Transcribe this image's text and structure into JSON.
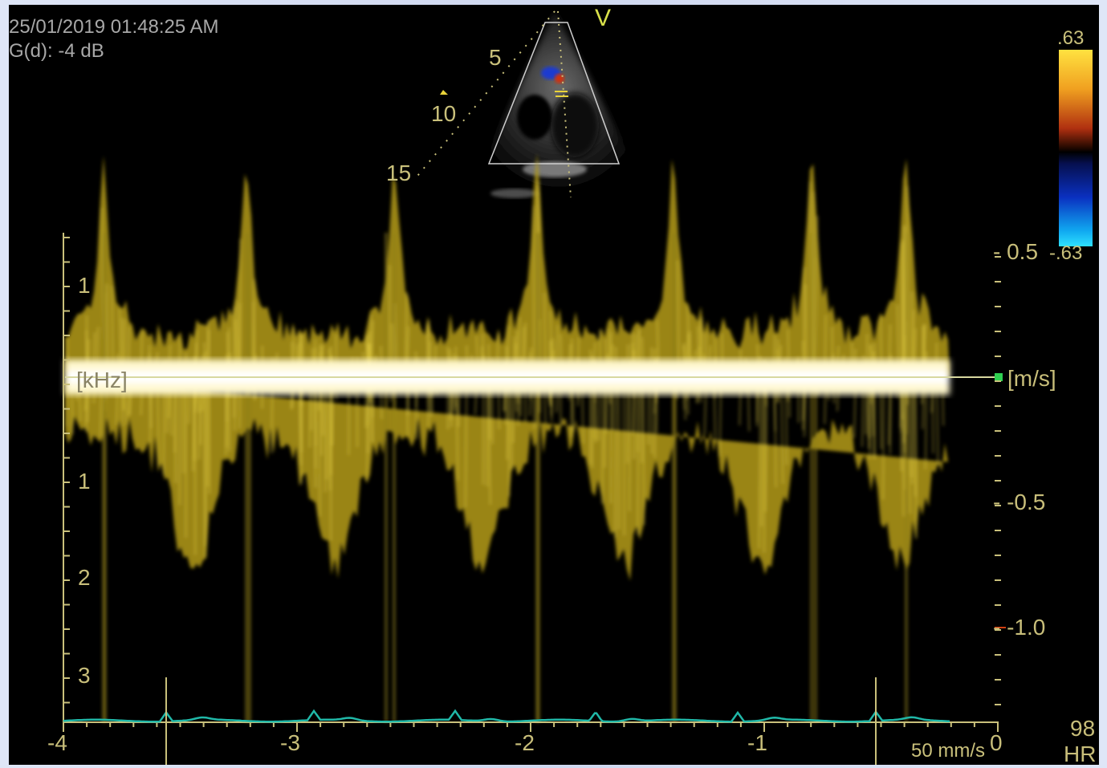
{
  "header": {
    "datetime": "25/01/2019 01:48:25 AM",
    "gain": "G(d): -4 dB"
  },
  "sector": {
    "mode_marker": "V",
    "depth_labels": [
      "5",
      "10",
      "15"
    ]
  },
  "color_scale": {
    "top_label": ".63",
    "bottom_label": "-.63"
  },
  "spectrum": {
    "left_axis": {
      "unit": "[kHz]",
      "ticks": [
        "1",
        "1",
        "2",
        "3"
      ]
    },
    "right_axis": {
      "unit": "[m/s]",
      "ticks": [
        "- 0.5",
        "- -0.5",
        "- -1.0"
      ]
    },
    "time_axis": {
      "ticks": [
        "-4",
        "-3",
        "-2",
        "-1",
        "0"
      ]
    },
    "sweep_speed": "50 mm/s",
    "heart_rate_value": "98",
    "heart_rate_label": "HR"
  },
  "colors": {
    "background": "#000000",
    "doppler": "#e8d23a",
    "baseline": "#d8d8a0",
    "ecg": "#20b8a8",
    "axis": "#c9c07b"
  }
}
